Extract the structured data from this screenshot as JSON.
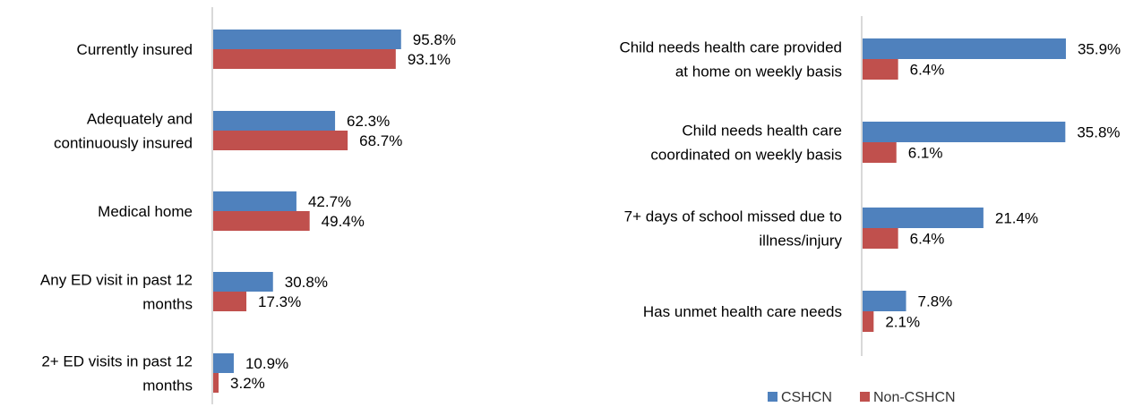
{
  "chart_data": [
    {
      "type": "bar",
      "orientation": "horizontal",
      "categories": [
        [
          "Currently insured"
        ],
        [
          "Adequately and",
          "continuously insured"
        ],
        [
          "Medical home"
        ],
        [
          "Any ED visit in past 12",
          "months"
        ],
        [
          "2+ ED visits in past 12",
          "months"
        ]
      ],
      "series": [
        {
          "name": "CSHCN",
          "values": [
            95.8,
            62.3,
            42.7,
            30.8,
            10.9
          ],
          "labels": [
            "95.8%",
            "62.3%",
            "42.7%",
            "30.8%",
            "10.9%"
          ]
        },
        {
          "name": "Non-CSHCN",
          "values": [
            93.1,
            68.7,
            49.4,
            17.3,
            3.2
          ],
          "labels": [
            "93.1%",
            "68.7%",
            "49.4%",
            "17.3%",
            "3.2%"
          ]
        }
      ],
      "xlim": [
        0,
        100
      ],
      "grid": false
    },
    {
      "type": "bar",
      "orientation": "horizontal",
      "categories": [
        [
          "Child needs health care provided",
          "at home on weekly basis"
        ],
        [
          "Child needs health care",
          "coordinated on weekly basis"
        ],
        [
          "7+ days of school missed due to",
          "illness/injury"
        ],
        [
          "Has unmet health care needs"
        ]
      ],
      "series": [
        {
          "name": "CSHCN",
          "values": [
            35.9,
            35.8,
            21.4,
            7.8
          ],
          "labels": [
            "35.9%",
            "35.8%",
            "21.4%",
            "7.8%"
          ]
        },
        {
          "name": "Non-CSHCN",
          "values": [
            6.4,
            6.1,
            6.4,
            2.1
          ],
          "labels": [
            "6.4%",
            "6.1%",
            "6.4%",
            "2.1%"
          ]
        }
      ],
      "xlim": [
        0,
        35.9
      ],
      "grid": false
    }
  ],
  "legend": {
    "placement": "bottom-right",
    "items": [
      {
        "label": "CSHCN",
        "color": "#4f81bd"
      },
      {
        "label": "Non-CSHCN",
        "color": "#c0504d"
      }
    ]
  },
  "colors": {
    "cshcn": "#4f81bd",
    "non_cshcn": "#c0504d",
    "axis": "#d9d9d9"
  }
}
